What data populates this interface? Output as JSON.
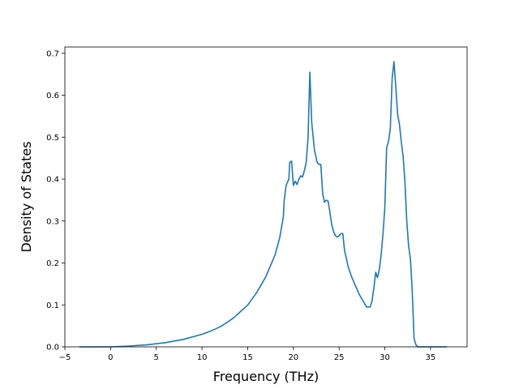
{
  "chart_data": {
    "type": "line",
    "title": "",
    "xlabel": "Frequency (THz)",
    "ylabel": "Density of States",
    "xlim": [
      -5.0,
      39.0
    ],
    "ylim": [
      0.0,
      0.715
    ],
    "xticks": [
      -5,
      0,
      5,
      10,
      15,
      20,
      25,
      30,
      35
    ],
    "xtick_labels": [
      "−5",
      "0",
      "5",
      "10",
      "15",
      "20",
      "25",
      "30",
      "35"
    ],
    "yticks": [
      0.0,
      0.1,
      0.2,
      0.3,
      0.4,
      0.5,
      0.6,
      0.7
    ],
    "ytick_labels": [
      "0.0",
      "0.1",
      "0.2",
      "0.3",
      "0.4",
      "0.5",
      "0.6",
      "0.7"
    ],
    "grid": false,
    "legend": "none",
    "line_color": "#1f77b4",
    "series": [
      {
        "x": [
          -3.4,
          -1.0,
          0.0,
          2.0,
          4.0,
          6.0,
          8.0,
          10.0,
          11.0,
          12.0,
          13.0,
          13.5,
          14.0,
          15.0,
          16.0,
          17.0,
          18.0,
          18.5,
          18.9,
          19.0,
          19.2,
          19.5,
          19.6,
          19.8,
          20.0,
          20.2,
          20.4,
          20.6,
          20.8,
          21.0,
          21.2,
          21.4,
          21.6,
          21.8,
          22.0,
          22.3,
          22.6,
          22.8,
          23.0,
          23.2,
          23.4,
          23.6,
          23.8,
          24.0,
          24.2,
          24.4,
          24.6,
          24.8,
          25.0,
          25.2,
          25.4,
          25.6,
          25.8,
          26.0,
          26.4,
          26.8,
          27.2,
          27.6,
          28.0,
          28.4,
          28.6,
          28.8,
          29.0,
          29.2,
          29.4,
          29.6,
          29.8,
          30.0,
          30.2,
          30.4,
          30.6,
          30.8,
          31.0,
          31.2,
          31.4,
          31.6,
          31.8,
          32.0,
          32.2,
          32.4,
          32.6,
          32.8,
          33.0,
          33.2,
          33.4,
          33.6,
          34.0,
          35.0,
          36.8
        ],
        "y": [
          0.0,
          0.0,
          0.0,
          0.002,
          0.005,
          0.01,
          0.018,
          0.03,
          0.038,
          0.048,
          0.062,
          0.07,
          0.08,
          0.1,
          0.13,
          0.168,
          0.22,
          0.26,
          0.31,
          0.35,
          0.385,
          0.4,
          0.44,
          0.443,
          0.385,
          0.395,
          0.387,
          0.4,
          0.408,
          0.405,
          0.42,
          0.44,
          0.5,
          0.655,
          0.535,
          0.47,
          0.44,
          0.435,
          0.435,
          0.365,
          0.345,
          0.35,
          0.347,
          0.32,
          0.29,
          0.275,
          0.265,
          0.262,
          0.265,
          0.27,
          0.27,
          0.23,
          0.21,
          0.19,
          0.165,
          0.145,
          0.125,
          0.11,
          0.095,
          0.095,
          0.11,
          0.14,
          0.178,
          0.165,
          0.185,
          0.22,
          0.27,
          0.33,
          0.475,
          0.49,
          0.52,
          0.64,
          0.68,
          0.62,
          0.555,
          0.53,
          0.49,
          0.455,
          0.395,
          0.3,
          0.24,
          0.21,
          0.13,
          0.02,
          0.005,
          0.0,
          0.0,
          0.0,
          0.0
        ]
      }
    ]
  }
}
